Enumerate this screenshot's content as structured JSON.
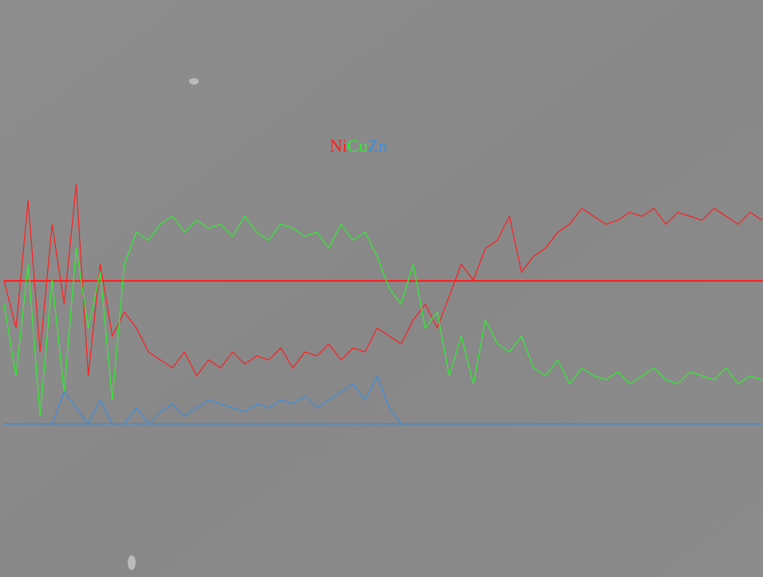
{
  "chart_data": {
    "type": "line",
    "ylim": [
      0,
      531
    ],
    "series": [
      {
        "name": "Ni",
        "color": "#ff1e1e",
        "values": [
          180,
          120,
          280,
          90,
          250,
          150,
          300,
          60,
          200,
          110,
          140,
          120,
          90,
          80,
          70,
          90,
          60,
          80,
          70,
          90,
          75,
          85,
          80,
          95,
          70,
          90,
          85,
          100,
          80,
          95,
          90,
          120,
          110,
          100,
          130,
          150,
          120,
          160,
          200,
          180,
          220,
          230,
          260,
          190,
          210,
          220,
          240,
          250,
          270,
          260,
          250,
          255,
          265,
          260,
          270,
          250,
          265,
          260,
          255,
          270,
          260,
          250,
          265,
          255
        ]
      },
      {
        "name": "Cu",
        "color": "#2ef02e",
        "values": [
          150,
          60,
          200,
          10,
          180,
          40,
          220,
          120,
          190,
          30,
          200,
          240,
          230,
          250,
          260,
          240,
          255,
          245,
          250,
          235,
          260,
          240,
          230,
          250,
          245,
          235,
          240,
          220,
          250,
          230,
          240,
          210,
          170,
          150,
          200,
          120,
          140,
          60,
          110,
          50,
          130,
          100,
          90,
          110,
          70,
          60,
          80,
          50,
          70,
          60,
          55,
          65,
          50,
          60,
          70,
          55,
          50,
          65,
          60,
          55,
          70,
          50,
          60,
          55
        ]
      },
      {
        "name": "Zn",
        "color": "#3a8ee0",
        "values": [
          0,
          0,
          0,
          0,
          0,
          40,
          20,
          0,
          30,
          0,
          0,
          20,
          0,
          15,
          25,
          10,
          20,
          30,
          25,
          20,
          15,
          25,
          20,
          30,
          25,
          35,
          20,
          30,
          40,
          50,
          30,
          60,
          20,
          0,
          0,
          0,
          0,
          0,
          0,
          0,
          0,
          0,
          0,
          0,
          0,
          0,
          0,
          0,
          0,
          0,
          0,
          0,
          0,
          0,
          0,
          0,
          0,
          0,
          0,
          0,
          0,
          0,
          0,
          0
        ]
      }
    ]
  }
}
